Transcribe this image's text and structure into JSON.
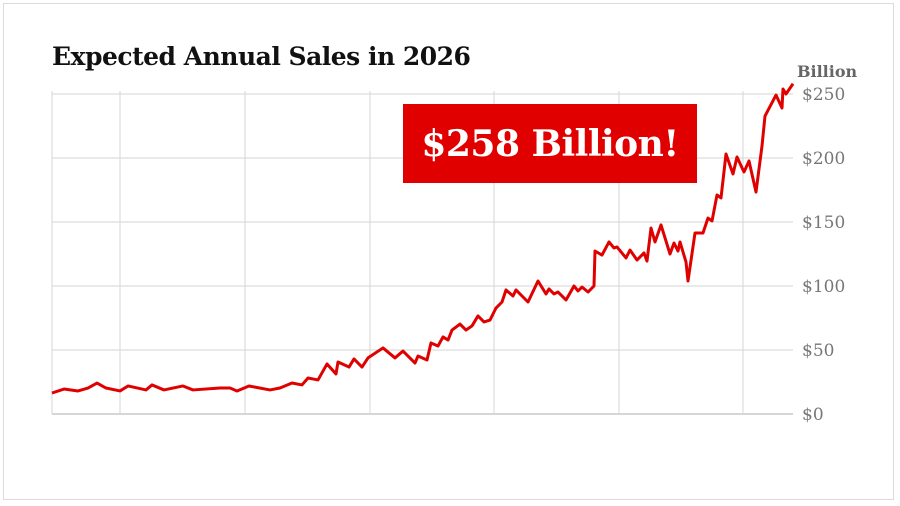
{
  "chart_data": {
    "type": "line",
    "title": "Expected Annual Sales in 2026",
    "ylabel": "Billion",
    "ylim": [
      0,
      250
    ],
    "yticks": [
      0,
      50,
      100,
      150,
      200,
      250
    ],
    "ytick_labels": [
      "$0",
      "$50",
      "$100",
      "$150",
      "$200",
      "$250"
    ],
    "grid": true,
    "annotation": "$258 Billion!",
    "series_color": "#e00000",
    "values": [
      16.4,
      19.5,
      18,
      20.3,
      24.2,
      20.3,
      18,
      21.9,
      18.8,
      22.7,
      18.8,
      21.9,
      18.8,
      20.3,
      20.3,
      18,
      21.9,
      18.8,
      20.3,
      24.2,
      22.7,
      28.1,
      26.6,
      39.1,
      31.3,
      40.6,
      36.7,
      43,
      36.7,
      43.8,
      51.6,
      43.8,
      49.2,
      39.8,
      45.3,
      42.2,
      55.5,
      53.1,
      60.2,
      57.8,
      65.6,
      70.3,
      65.6,
      68.8,
      76.6,
      71.9,
      73.4,
      82.8,
      87.5,
      96.9,
      92.2,
      96.9,
      87.5,
      103.9,
      93.8,
      97.7,
      93.8,
      95.3,
      89.1,
      100,
      96.1,
      99.2,
      95.3,
      100,
      127.3,
      124.2,
      134.4,
      129.7,
      130.5,
      121.9,
      128.1,
      120.3,
      125.8,
      119.5,
      145.3,
      134.4,
      147.7,
      125,
      133.6,
      127.3,
      134.4,
      118.8,
      103.9,
      141.4,
      141.4,
      153.1,
      150.8,
      171.1,
      168.8,
      203.1,
      187.5,
      200.8,
      189.1,
      197.7,
      173.4,
      209.4,
      232.8,
      249.2,
      239.1,
      253.9,
      250,
      258
    ]
  }
}
